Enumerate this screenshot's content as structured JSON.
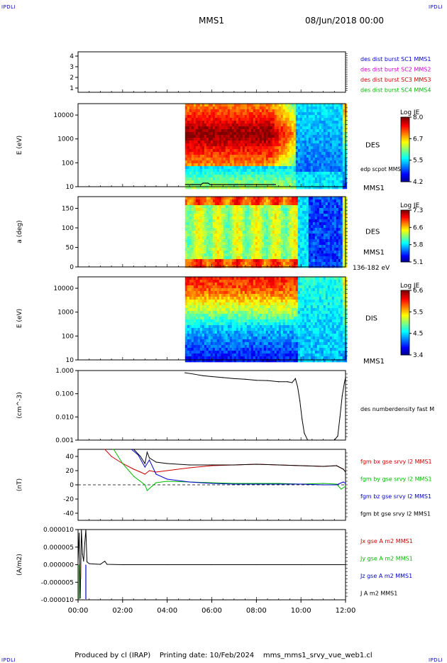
{
  "header": {
    "corner_label": "IPDLI",
    "title": "MMS1",
    "date": "08/Jun/2018 00:00"
  },
  "footer": {
    "produced_by": "Produced by cl (IRAP)",
    "printing_date": "Printing date: 10/Feb/2024",
    "file": "mms_mms1_srvy_vue_web1.cl"
  },
  "colors": {
    "blue": "#0000cc",
    "magenta": "#cc00cc",
    "red": "#cc0000",
    "green": "#00bb00",
    "black": "#000000"
  },
  "chart_data": [
    {
      "type": "line",
      "id": "sc-config",
      "ylabel": "",
      "yticks": [
        "1",
        "2",
        "3",
        "4"
      ],
      "ylim": [
        0.6,
        4.4
      ],
      "legend": [
        {
          "text": "des dist burst SC1 MMS1",
          "color": "#0000cc"
        },
        {
          "text": "des dist burst SC2 MMS2",
          "color": "#cc00cc"
        },
        {
          "text": "des dist burst SC3 MMS3",
          "color": "#cc0000"
        },
        {
          "text": "des dist burst SC4 MMS4",
          "color": "#00bb00"
        }
      ]
    },
    {
      "type": "heatmap",
      "id": "des-energy",
      "ylabel": "E (eV)",
      "yscale": "log",
      "ylim": [
        10,
        30000
      ],
      "yticks": [
        "10",
        "100",
        "1000",
        "10000"
      ],
      "xlim_hours": [
        0,
        12
      ],
      "data_start_hour": 4.8,
      "label": "DES",
      "sub_label": "MMS1",
      "overlay_label": "edp scpot MMS1",
      "colorbar": {
        "title": "Log JE",
        "max": "8.0",
        "mid_hi": "6.7",
        "mid_lo": "5.5",
        "min": "4.2"
      }
    },
    {
      "type": "heatmap",
      "id": "des-pitch",
      "ylabel": "a (deg)",
      "ylim": [
        0,
        180
      ],
      "yticks": [
        "0",
        "50",
        "100",
        "150"
      ],
      "xlim_hours": [
        0,
        12
      ],
      "data_start_hour": 4.8,
      "label": "DES",
      "sub_label": "MMS1",
      "energy_range": "136-182 eV",
      "colorbar": {
        "title": "Log JE",
        "max": "7.3",
        "mid_hi": "6.6",
        "mid_lo": "5.8",
        "min": "5.1"
      }
    },
    {
      "type": "heatmap",
      "id": "dis-energy",
      "ylabel": "E (eV)",
      "yscale": "log",
      "ylim": [
        10,
        30000
      ],
      "yticks": [
        "10",
        "100",
        "1000",
        "10000"
      ],
      "xlim_hours": [
        0,
        12
      ],
      "data_start_hour": 4.8,
      "label": "DIS",
      "sub_label": "MMS1",
      "colorbar": {
        "title": "Log JE",
        "max": "6.6",
        "mid_hi": "5.5",
        "mid_lo": "4.5",
        "min": "3.4"
      }
    },
    {
      "type": "line",
      "id": "density",
      "ylabel": "(cm^-3)",
      "yscale": "log",
      "ylim": [
        0.001,
        1.0
      ],
      "yticks": [
        "0.001",
        "0.010",
        "0.100",
        "1.000"
      ],
      "legend": [
        {
          "text": "des numberdensity fast M",
          "color": "#000000"
        }
      ],
      "x_hours": [
        4.8,
        5.2,
        5.6,
        6.0,
        6.5,
        7.0,
        7.5,
        8.0,
        8.5,
        9.0,
        9.4,
        9.6,
        9.75,
        9.85,
        9.95,
        10.05,
        10.15,
        10.3,
        10.5,
        10.7,
        10.9,
        11.1,
        11.3,
        11.5,
        11.65,
        11.75,
        11.85,
        11.95,
        12.0
      ],
      "values": [
        0.8,
        0.7,
        0.6,
        0.55,
        0.5,
        0.45,
        0.42,
        0.38,
        0.37,
        0.33,
        0.33,
        0.3,
        0.45,
        0.2,
        0.05,
        0.008,
        0.002,
        0.001,
        0.001,
        0.001,
        0.001,
        0.001,
        0.001,
        0.001,
        0.0015,
        0.01,
        0.08,
        0.3,
        0.5
      ]
    },
    {
      "type": "line",
      "id": "fgm-b",
      "ylabel": "(nT)",
      "ylim": [
        -50,
        50
      ],
      "yticks": [
        "-40",
        "-20",
        "0",
        "20",
        "40"
      ],
      "series": [
        {
          "name": "fgm bx gse srvy l2 MMS1",
          "color": "#cc0000",
          "x": [
            1.2,
            1.5,
            2.0,
            2.5,
            2.8,
            3.0,
            3.2,
            3.5,
            4.0,
            5.0,
            6.0,
            7.0,
            8.0,
            9.0,
            10.0,
            11.0,
            11.6,
            11.9,
            12.0
          ],
          "values": [
            50,
            40,
            30,
            22,
            18,
            15,
            20,
            18,
            20,
            24,
            27,
            28,
            29,
            28,
            27,
            26,
            27,
            22,
            18
          ]
        },
        {
          "name": "fgm by gse srvy l2 MMS1",
          "color": "#00bb00",
          "x": [
            1.6,
            2.0,
            2.5,
            3.0,
            3.1,
            3.5,
            4.0,
            5.0,
            6.0,
            7.0,
            8.0,
            9.0,
            10.0,
            11.0,
            11.6,
            11.8,
            12.0
          ],
          "values": [
            50,
            30,
            12,
            0,
            -8,
            3,
            5,
            4,
            3,
            2,
            2,
            2,
            1,
            2,
            1,
            -6,
            -2
          ]
        },
        {
          "name": "fgm bz gse srvy l2 MMS1",
          "color": "#0000cc",
          "x": [
            2.4,
            2.7,
            3.0,
            3.2,
            3.5,
            4.0,
            5.0,
            6.0,
            7.0,
            8.0,
            9.0,
            10.0,
            11.0,
            11.6,
            11.9,
            12.0
          ],
          "values": [
            50,
            42,
            25,
            35,
            15,
            8,
            4,
            2,
            1,
            1,
            1,
            1,
            0,
            0,
            4,
            2
          ]
        },
        {
          "name": "fgm bt gse srvy l2 MMS1",
          "color": "#000000",
          "x": [
            2.5,
            2.8,
            3.0,
            3.1,
            3.2,
            3.5,
            4.0,
            5.0,
            6.0,
            7.0,
            8.0,
            9.0,
            10.0,
            11.0,
            11.6,
            11.9,
            12.0
          ],
          "values": [
            50,
            40,
            30,
            46,
            38,
            32,
            30,
            28,
            28,
            28,
            29,
            28,
            27,
            26,
            27,
            22,
            18
          ]
        }
      ]
    },
    {
      "type": "line",
      "id": "current",
      "ylabel": "(A/m2)",
      "ylim": [
        -1e-05,
        1e-05
      ],
      "yticks": [
        "-0.000010",
        "-0.000005",
        "0.000000",
        "0.000005",
        "0.000010"
      ],
      "xticks": [
        "00:00",
        "02:00",
        "04:00",
        "06:00",
        "08:00",
        "10:00",
        "12:00"
      ],
      "series": [
        {
          "name": "Jx gse A m2 MMS1",
          "color": "#cc0000"
        },
        {
          "name": "Jy gse A m2 MMS1",
          "color": "#00bb00"
        },
        {
          "name": "Jz gse A m2 MMS1",
          "color": "#0000cc"
        },
        {
          "name": "J A m2 MMS1",
          "color": "#000000"
        }
      ],
      "x_hours": [
        0.0,
        0.05,
        0.1,
        0.15,
        0.2,
        0.25,
        0.3,
        0.35,
        0.4,
        0.5,
        0.7,
        1.0,
        1.2,
        1.3,
        2.0,
        4.0,
        6.0,
        8.0,
        10.0,
        12.0
      ],
      "values": [
        1.2e-06,
        9e-06,
        -9.5e-06,
        1e-05,
        3e-06,
        1e-06,
        6e-06,
        1e-05,
        8e-07,
        3e-07,
        2e-07,
        1e-07,
        1e-06,
        1e-07,
        0.0,
        0.0,
        0.0,
        0.0,
        0.0,
        0.0
      ]
    }
  ]
}
